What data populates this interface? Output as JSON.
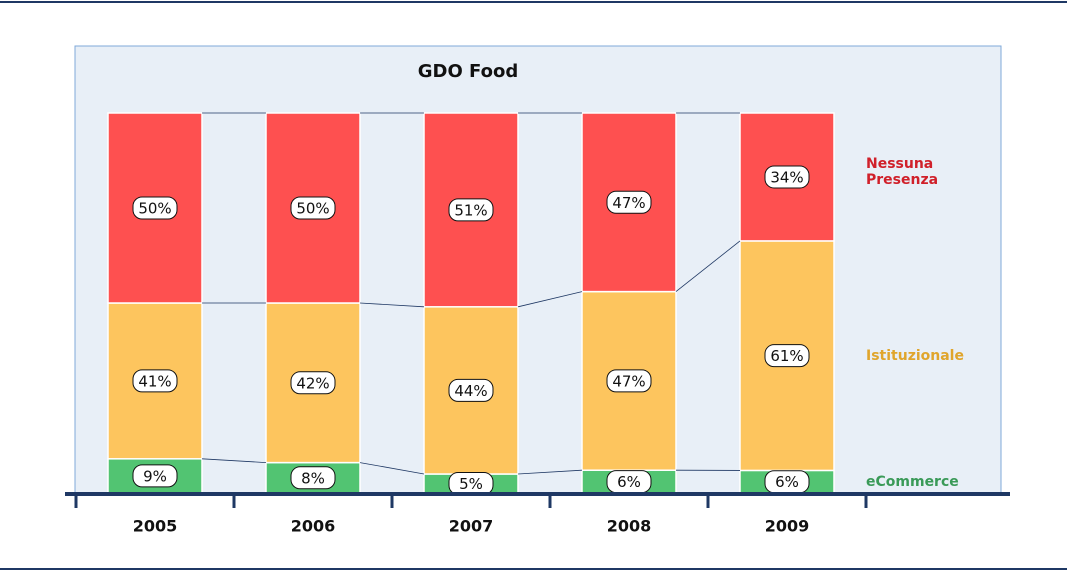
{
  "chart_data": {
    "type": "stacked-bar",
    "title": "GDO Food",
    "categories": [
      "2005",
      "2006",
      "2007",
      "2008",
      "2009"
    ],
    "series": [
      {
        "name": "eCommerce",
        "color": "#52c472",
        "label_color": "#3a9a58",
        "values": [
          9,
          8,
          5,
          6,
          6
        ],
        "value_labels": [
          "9%",
          "8%",
          "5%",
          "6%",
          "6%"
        ]
      },
      {
        "name": "Istituzionale",
        "color": "#fdc55e",
        "label_color": "#e0a52c",
        "values": [
          41,
          42,
          44,
          47,
          61
        ],
        "value_labels": [
          "41%",
          "42%",
          "44%",
          "47%",
          "61%"
        ]
      },
      {
        "name": "Nessuna Presenza",
        "color": "#fe5050",
        "label_color": "#d0202a",
        "values": [
          50,
          50,
          51,
          47,
          34
        ],
        "value_labels": [
          "50%",
          "50%",
          "51%",
          "47%",
          "34%"
        ]
      }
    ]
  }
}
